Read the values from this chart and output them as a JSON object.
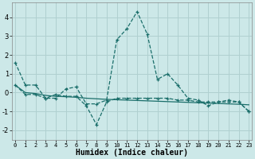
{
  "xlabel": "Humidex (Indice chaleur)",
  "x": [
    0,
    1,
    2,
    3,
    4,
    5,
    6,
    7,
    8,
    9,
    10,
    11,
    12,
    13,
    14,
    15,
    16,
    17,
    18,
    19,
    20,
    21,
    22,
    23
  ],
  "line1": [
    1.6,
    0.4,
    0.4,
    -0.3,
    -0.3,
    0.2,
    0.3,
    -0.6,
    -0.6,
    -0.4,
    2.8,
    3.4,
    4.3,
    3.1,
    0.7,
    1.0,
    0.4,
    -0.3,
    -0.4,
    -0.7,
    -0.5,
    -0.4,
    -0.5,
    -1.0
  ],
  "line2": [
    0.4,
    -0.1,
    -0.1,
    -0.3,
    -0.1,
    -0.2,
    -0.2,
    -0.7,
    -1.7,
    -0.5,
    -0.3,
    -0.3,
    -0.3,
    -0.3,
    -0.3,
    -0.3,
    -0.4,
    -0.4,
    -0.5,
    -0.5,
    -0.5,
    -0.5,
    -0.5,
    -1.0
  ],
  "line3": [
    0.4,
    0.0,
    -0.05,
    -0.15,
    -0.2,
    -0.22,
    -0.25,
    -0.3,
    -0.33,
    -0.36,
    -0.38,
    -0.4,
    -0.42,
    -0.44,
    -0.46,
    -0.48,
    -0.5,
    -0.52,
    -0.54,
    -0.56,
    -0.58,
    -0.6,
    -0.62,
    -0.65
  ],
  "bg_color": "#cce8e8",
  "grid_color": "#b0d0d0",
  "line_color": "#1a6e6a",
  "ylim": [
    -2.5,
    4.8
  ],
  "yticks": [
    -2,
    -1,
    0,
    1,
    2,
    3,
    4
  ],
  "xticks": [
    0,
    1,
    2,
    3,
    4,
    5,
    6,
    7,
    8,
    9,
    10,
    11,
    12,
    13,
    14,
    15,
    16,
    17,
    18,
    19,
    20,
    21,
    22,
    23
  ],
  "xlabels": [
    "0",
    "1",
    "2",
    "3",
    "4",
    "5",
    "6",
    "7",
    "8",
    "9",
    "10",
    "11",
    "12",
    "13",
    "14",
    "15",
    "16",
    "17",
    "18",
    "19",
    "20",
    "21",
    "22",
    "23"
  ]
}
